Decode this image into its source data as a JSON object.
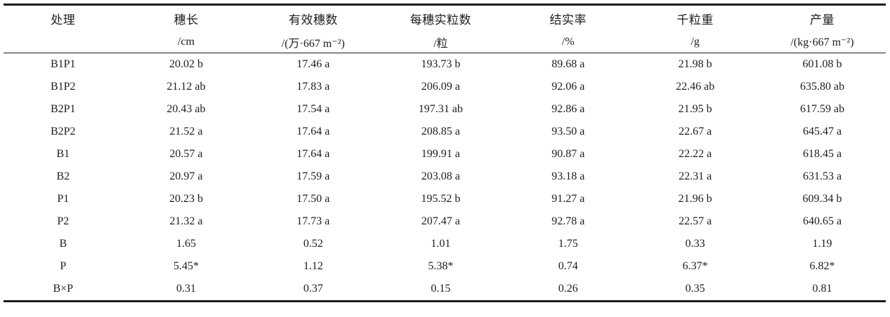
{
  "chart_data": {
    "type": "table",
    "columns": [
      {
        "label": "处理",
        "unit": ""
      },
      {
        "label": "穗长",
        "unit": "/cm"
      },
      {
        "label": "有效穗数",
        "unit": "/(万·667 m⁻²)"
      },
      {
        "label": "每穗实粒数",
        "unit": "/粒"
      },
      {
        "label": "结实率",
        "unit": "/%"
      },
      {
        "label": "千粒重",
        "unit": "/g"
      },
      {
        "label": "产量",
        "unit": "/(kg·667 m⁻²)"
      }
    ],
    "rows": [
      [
        "B1P1",
        "20.02 b",
        "17.46 a",
        "193.73 b",
        "89.68 a",
        "21.98 b",
        "601.08 b"
      ],
      [
        "B1P2",
        "21.12 ab",
        "17.83 a",
        "206.09 a",
        "92.06 a",
        "22.46 ab",
        "635.80 ab"
      ],
      [
        "B2P1",
        "20.43 ab",
        "17.54 a",
        "197.31 ab",
        "92.86 a",
        "21.95 b",
        "617.59 ab"
      ],
      [
        "B2P2",
        "21.52 a",
        "17.64 a",
        "208.85 a",
        "93.50 a",
        "22.67 a",
        "645.47 a"
      ],
      [
        "B1",
        "20.57 a",
        "17.64 a",
        "199.91 a",
        "90.87 a",
        "22.22 a",
        "618.45 a"
      ],
      [
        "B2",
        "20.97 a",
        "17.59 a",
        "203.08 a",
        "93.18 a",
        "22.31 a",
        "631.53 a"
      ],
      [
        "P1",
        "20.23 b",
        "17.50 a",
        "195.52 b",
        "91.27 a",
        "21.96 b",
        "609.34 b"
      ],
      [
        "P2",
        "21.32 a",
        "17.73 a",
        "207.47 a",
        "92.78 a",
        "22.57 a",
        "640.65 a"
      ],
      [
        "B",
        "1.65",
        "0.52",
        "1.01",
        "1.75",
        "0.33",
        "1.19"
      ],
      [
        "P",
        "5.45*",
        "1.12",
        "5.38*",
        "0.74",
        "6.37*",
        "6.82*"
      ],
      [
        "B×P",
        "0.31",
        "0.37",
        "0.15",
        "0.26",
        "0.35",
        "0.81"
      ]
    ]
  },
  "colors": {
    "text": "#1d1d1d",
    "rule": "#1b1b1b",
    "background": "#ffffff"
  }
}
